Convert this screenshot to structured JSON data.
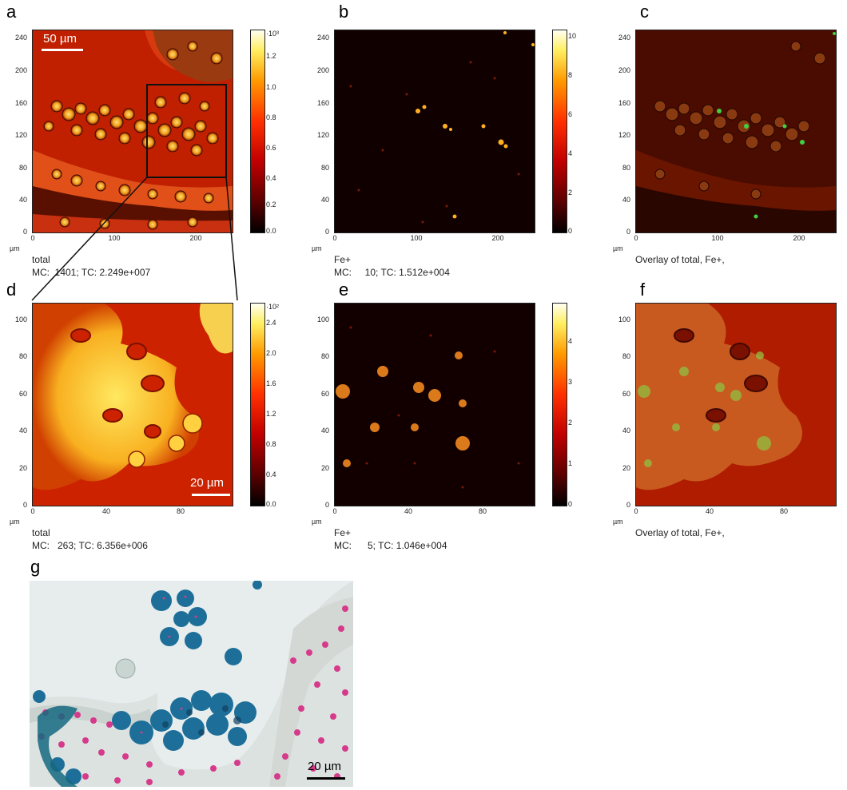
{
  "panels": {
    "a": {
      "label": "a",
      "channel": "total",
      "stats": "MC:  1401; TC: 2.249e+007",
      "scalebar": "50 µm",
      "colorbar_exp": "·10³",
      "colorbar_ticks": [
        "1.2",
        "1.0",
        "0.8",
        "0.6",
        "0.4",
        "0.2",
        "0.0"
      ]
    },
    "b": {
      "label": "b",
      "channel": "Fe+",
      "stats": "MC:     10; TC: 1.512e+004",
      "colorbar_ticks": [
        "10",
        "8",
        "6",
        "4",
        "2",
        "0"
      ]
    },
    "c": {
      "label": "c",
      "caption": "Overlay of total, Fe+,"
    },
    "d": {
      "label": "d",
      "channel": "total",
      "stats": "MC:   263; TC: 6.356e+006",
      "scalebar": "20 µm",
      "colorbar_exp": "·10²",
      "colorbar_ticks": [
        "2.4",
        "2.0",
        "1.6",
        "1.2",
        "0.8",
        "0.4",
        "0.0"
      ]
    },
    "e": {
      "label": "e",
      "channel": "Fe+",
      "stats": "MC:      5; TC: 1.046e+004",
      "colorbar_ticks": [
        "4",
        "3",
        "2",
        "1",
        "0"
      ]
    },
    "f": {
      "label": "f",
      "caption": "Overlay of total, Fe+,"
    },
    "g": {
      "label": "g",
      "scalebar": "20 µm"
    }
  },
  "axes": {
    "unit": "µm",
    "top_y_ticks": [
      "240",
      "200",
      "160",
      "120",
      "80",
      "40",
      "0"
    ],
    "top_x_ticks": [
      "0",
      "100",
      "200"
    ],
    "bottom_y_ticks": [
      "100",
      "80",
      "60",
      "40",
      "20",
      "0"
    ],
    "bottom_x_ticks": [
      "0",
      "40",
      "80"
    ]
  },
  "colors": {
    "heat_dark": "#1a0000",
    "heat_mid": "#d42000",
    "heat_bright": "#ffe060",
    "stain_blue": "#1f6f9a",
    "stain_pink": "#d63a8a"
  }
}
